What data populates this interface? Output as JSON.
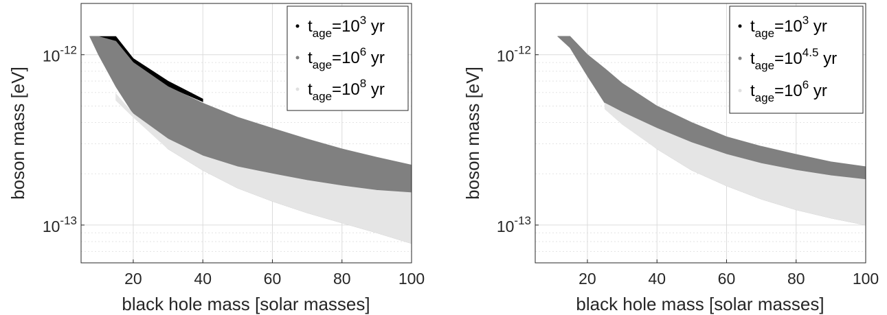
{
  "chart_data": [
    {
      "type": "area",
      "title": "",
      "xlabel": "black hole mass [solar masses]",
      "ylabel": "boson mass [eV]",
      "xlim": [
        5,
        100
      ],
      "ylim": [
        6e-14,
        2e-12
      ],
      "yscale": "log",
      "grid": true,
      "legend_position": "top-right",
      "x_ticks": [
        20,
        40,
        60,
        80,
        100
      ],
      "x_tick_labels": [
        "20",
        "40",
        "60",
        "80",
        "100"
      ],
      "y_ticks": [
        1e-13,
        1e-12
      ],
      "y_tick_labels": [
        {
          "base": "10",
          "exp": "-13"
        },
        {
          "base": "10",
          "exp": "-12"
        }
      ],
      "series": [
        {
          "legend": {
            "prefix": "t",
            "sub": "age",
            "mid": "=10",
            "sup": "3",
            "suffix": " yr"
          },
          "color": "#000000",
          "x": [
            7.5,
            15,
            20,
            30,
            40
          ],
          "upper": [
            1.28e-12,
            1.28e-12,
            9.5e-13,
            7e-13,
            5.5e-13
          ],
          "lower": [
            1.28e-12,
            1.2e-12,
            9e-13,
            6.5e-13,
            5.3e-13
          ]
        },
        {
          "legend": {
            "prefix": "t",
            "sub": "age",
            "mid": "=10",
            "sup": "6",
            "suffix": " yr"
          },
          "color": "#808080",
          "x": [
            7.5,
            10,
            15,
            20,
            30,
            40,
            50,
            60,
            70,
            80,
            90,
            100
          ],
          "upper": [
            1.28e-12,
            1.28e-12,
            1.2e-12,
            9e-13,
            6.5e-13,
            5.2e-13,
            4.3e-13,
            3.7e-13,
            3.2e-13,
            2.8e-13,
            2.5e-13,
            2.25e-13
          ],
          "lower": [
            1.28e-12,
            1e-12,
            6.5e-13,
            4.5e-13,
            2.8e-13,
            2.1e-13,
            1.65e-13,
            1.38e-13,
            1.18e-13,
            1.03e-13,
            9e-14,
            7.8e-14
          ]
        },
        {
          "legend": {
            "prefix": "t",
            "sub": "age",
            "mid": "=10",
            "sup": "8",
            "suffix": " yr"
          },
          "color": "#e5e5e5",
          "x": [
            15,
            20,
            30,
            40,
            50,
            60,
            70,
            80,
            90,
            100
          ],
          "upper": [
            5.9e-13,
            4.5e-13,
            3.2e-13,
            2.55e-13,
            2.2e-13,
            2e-13,
            1.83e-13,
            1.7e-13,
            1.6e-13,
            1.55e-13
          ],
          "lower": [
            5.4e-13,
            4.3e-13,
            2.8e-13,
            2.1e-13,
            1.65e-13,
            1.38e-13,
            1.18e-13,
            1.03e-13,
            9e-14,
            7.8e-14
          ]
        }
      ]
    },
    {
      "type": "area",
      "title": "",
      "xlabel": "black hole mass [solar masses]",
      "ylabel": "boson mass [eV]",
      "xlim": [
        5,
        100
      ],
      "ylim": [
        6e-14,
        2e-12
      ],
      "yscale": "log",
      "grid": true,
      "legend_position": "top-right",
      "x_ticks": [
        20,
        40,
        60,
        80,
        100
      ],
      "x_tick_labels": [
        "20",
        "40",
        "60",
        "80",
        "100"
      ],
      "y_ticks": [
        1e-13,
        1e-12
      ],
      "y_tick_labels": [
        {
          "base": "10",
          "exp": "-13"
        },
        {
          "base": "10",
          "exp": "-12"
        }
      ],
      "series": [
        {
          "legend": {
            "prefix": "t",
            "sub": "age",
            "mid": "=10",
            "sup": "3",
            "suffix": " yr"
          },
          "color": "#000000",
          "x": [
            11.5,
            15,
            20,
            24
          ],
          "upper": [
            1.28e-12,
            1.28e-12,
            1e-12,
            8.6e-13
          ],
          "lower": [
            1.28e-12,
            1.2e-12,
            9.6e-13,
            8.5e-13
          ]
        },
        {
          "legend": {
            "prefix": "t",
            "sub": "age",
            "mid": "=10",
            "sup": "4.5",
            "suffix": " yr"
          },
          "color": "#808080",
          "x": [
            11.5,
            15,
            20,
            25,
            30,
            40,
            50,
            60,
            70,
            80,
            90,
            100
          ],
          "upper": [
            1.28e-12,
            1.28e-12,
            1e-12,
            8.3e-13,
            6.8e-13,
            5e-13,
            4e-13,
            3.3e-13,
            2.9e-13,
            2.6e-13,
            2.35e-13,
            2.2e-13
          ],
          "lower": [
            1.28e-12,
            1.1e-12,
            7.5e-13,
            5.2e-13,
            4e-13,
            2.8e-13,
            2.1e-13,
            1.7e-13,
            1.42e-13,
            1.23e-13,
            1.1e-13,
            1e-13
          ]
        },
        {
          "legend": {
            "prefix": "t",
            "sub": "age",
            "mid": "=10",
            "sup": "6",
            "suffix": " yr"
          },
          "color": "#e5e5e5",
          "x": [
            25,
            30,
            40,
            50,
            60,
            70,
            80,
            90,
            100
          ],
          "upper": [
            5.2e-13,
            4.6e-13,
            3.7e-13,
            3.05e-13,
            2.6e-13,
            2.3e-13,
            2.1e-13,
            1.95e-13,
            1.85e-13
          ],
          "lower": [
            4.8e-13,
            3.9e-13,
            2.8e-13,
            2.1e-13,
            1.7e-13,
            1.42e-13,
            1.23e-13,
            1.1e-13,
            1e-13
          ]
        }
      ]
    }
  ]
}
